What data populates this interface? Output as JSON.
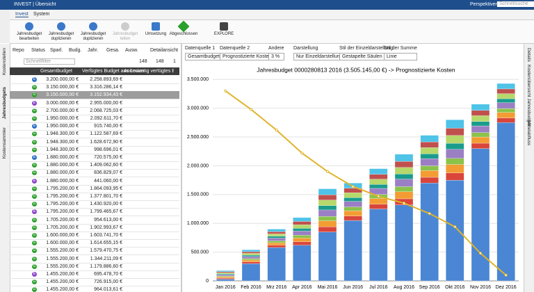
{
  "app": {
    "title": "INVEST | Übersicht",
    "perspectives": "Perspektiven",
    "search": "Schnellsuche",
    "tabs": [
      "Invest",
      "System"
    ],
    "ribbon": [
      "Jahresbudget bearbeiten",
      "Jahresbudget duplizieren",
      "Jahresbudget duplizieren",
      "Jahresbudget teilen",
      "Umsetzung",
      "Abgeschlossen",
      "EXPLORE"
    ],
    "left_tabs": [
      "Kostenstellen",
      "Jahresbudgets",
      "Kostensammler"
    ],
    "right_tabs": [
      "Details",
      "Kostenübersicht Jahresbudget",
      "Mittelabfluss"
    ]
  },
  "table": {
    "filters": [
      "Repo",
      "Status",
      "Sparl.",
      "Budg.",
      "Jahr.",
      "Gesa.",
      "Ausw."
    ],
    "view": "Detailansicht",
    "quickfilter": "Schnellfilter",
    "counts": [
      148,
      148,
      1
    ],
    "columns": [
      "Gesamtbudget",
      "Verfügtes Budget aus Lovion",
      "Anderweitig verfügtes Budget"
    ],
    "rows": [
      [
        "E",
        "3.200.000,00 €",
        "2.258.893,69 €"
      ],
      [
        "G",
        "3.150.000,00 €",
        "3.316.286,14 €"
      ],
      [
        "G",
        "3.150.000,00 €",
        "3.152.934,43 €"
      ],
      [
        "E",
        "3.000.000,00 €",
        "2.955.000,00 €"
      ],
      [
        "G",
        "2.700.000,00 €",
        "2.068.725,03 €"
      ],
      [
        "G",
        "1.950.000,00 €",
        "2.092.611,70 €"
      ],
      [
        "E",
        "1.950.000,00 €",
        "915.740,00 €"
      ],
      [
        "G",
        "1.948.300,00 €",
        "1.122.587,69 €"
      ],
      [
        "G",
        "1.948.300,00 €",
        "1.628.672,90 €"
      ],
      [
        "G",
        "1.948.300,00 €",
        "998.696,01 €"
      ],
      [
        "E",
        "1.880.000,00 €",
        "720.575,00 €"
      ],
      [
        "G",
        "1.880.000,00 €",
        "1.409.062,60 €"
      ],
      [
        "G",
        "1.880.000,00 €",
        "836.829,07 €"
      ],
      [
        "E",
        "1.880.000,00 €",
        "441.060,00 €"
      ],
      [
        "G",
        "1.795.200,00 €",
        "1.864.093,95 €"
      ],
      [
        "G",
        "1.795.200,00 €",
        "1.377.801,70 €"
      ],
      [
        "G",
        "1.795.200,00 €",
        "1.430.920,00 €"
      ],
      [
        "E",
        "1.795.200,00 €",
        "1.799.465,67 €"
      ],
      [
        "G",
        "1.705.200,00 €",
        "954.613,00 €"
      ],
      [
        "G",
        "1.705.200,00 €",
        "1.902.993,67 €"
      ],
      [
        "G",
        "1.600.000,00 €",
        "1.603.741,70 €"
      ],
      [
        "G",
        "1.600.000,00 €",
        "1.614.655,15 €"
      ],
      [
        "G",
        "1.555.200,00 €",
        "1.579.470,75 €"
      ],
      [
        "G",
        "1.555.200,00 €",
        "1.344.211,09 €"
      ],
      [
        "G",
        "1.555.200,00 €",
        "1.179.886,60 €"
      ],
      [
        "E",
        "1.455.200,00 €",
        "695.478,70 €"
      ],
      [
        "G",
        "1.455.200,00 €",
        "726.915,00 €"
      ],
      [
        "G",
        "1.455.200,00 €",
        "964.013,61 €"
      ]
    ]
  },
  "controls": [
    {
      "label": "Datenquelle 1",
      "value": "Gesamtbudget"
    },
    {
      "label": "Datenquelle 2",
      "value": "Prognostizierte Kosten"
    },
    {
      "label": "Andere",
      "value": "3 %"
    },
    {
      "label": "Darstellung",
      "value": "Nur Einzeldarstellung"
    },
    {
      "label": "Stil der Einzeldarstellung",
      "value": "Gestapelte Säulen"
    },
    {
      "label": "Stil der Summe",
      "value": "Linie"
    }
  ],
  "chart_data": {
    "type": "stacked_bar",
    "title": "Jahresbudget 0000280813 2016 (3.505.145,00 €) -> Prognostizierte Kosten",
    "categories": [
      "Jan 2016",
      "Feb 2016",
      "Mrz 2016",
      "Apr 2016",
      "Mai 2016",
      "Jun 2016",
      "Jul 2016",
      "Aug 2016",
      "Sep 2016",
      "Okt 2016",
      "Nov 2016",
      "Dez 2016"
    ],
    "ylim": [
      0,
      3600000
    ],
    "yticks": [
      {
        "value": 0,
        "label": "0"
      },
      {
        "value": 500000,
        "label": "500.000"
      },
      {
        "value": 1000000,
        "label": "1.000.000"
      },
      {
        "value": 1500000,
        "label": "1.500.000"
      },
      {
        "value": 2000000,
        "label": "2.000.000"
      },
      {
        "value": 2500000,
        "label": "2.500.000"
      },
      {
        "value": 3000000,
        "label": "3.000.000"
      },
      {
        "value": 3500000,
        "label": "3.500.000"
      }
    ],
    "grid": true,
    "series": [
      {
        "color": "#4a86d4",
        "values": [
          30000,
          300000,
          580000,
          620000,
          850000,
          1050000,
          1250000,
          1320000,
          1700000,
          1750000,
          2300000,
          2750000
        ]
      },
      {
        "color": "#d9453b",
        "values": [
          18000,
          29000,
          38000,
          58000,
          90000,
          78000,
          84000,
          106000,
          100000,
          126000,
          92000,
          82000
        ]
      },
      {
        "color": "#f39c33",
        "values": [
          21000,
          34000,
          45000,
          67000,
          105000,
          91000,
          98000,
          123000,
          116000,
          147000,
          108000,
          95000
        ]
      },
      {
        "color": "#8bc34a",
        "values": [
          15000,
          24000,
          32000,
          48000,
          75000,
          65000,
          70000,
          88000,
          83000,
          105000,
          77000,
          68000
        ]
      },
      {
        "color": "#9b7fc4",
        "values": [
          22000,
          36000,
          48000,
          72000,
          113000,
          98000,
          105000,
          132000,
          125000,
          158000,
          116000,
          102000
        ]
      },
      {
        "color": "#1a9c8c",
        "values": [
          15000,
          24000,
          32000,
          48000,
          75000,
          65000,
          70000,
          88000,
          83000,
          105000,
          77000,
          68000
        ]
      },
      {
        "color": "#b7d86b",
        "values": [
          20000,
          31000,
          42000,
          62000,
          97000,
          84000,
          91000,
          114000,
          108000,
          136000,
          100000,
          88000
        ]
      },
      {
        "color": "#c0504d",
        "values": [
          18000,
          29000,
          38000,
          58000,
          90000,
          78000,
          84000,
          106000,
          100000,
          126000,
          92000,
          82000
        ]
      },
      {
        "color": "#4fc3e8",
        "values": [
          21000,
          33000,
          45000,
          67000,
          105000,
          91000,
          98000,
          123000,
          115000,
          147000,
          108000,
          95000
        ]
      },
      {
        "type": "line",
        "color": "#e0b42a",
        "values": [
          3300000,
          2980000,
          2620000,
          2220000,
          1900000,
          1640000,
          1470000,
          1350000,
          1170000,
          940000,
          480000,
          100000
        ]
      }
    ]
  }
}
